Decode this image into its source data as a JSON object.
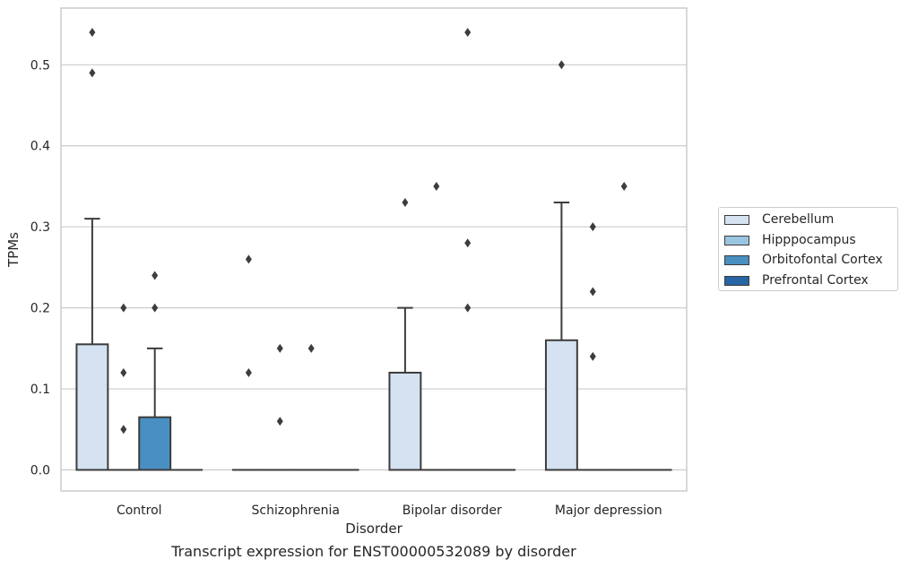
{
  "chart_data": {
    "type": "box",
    "title": "Transcript expression for ENST00000532089 by disorder",
    "xlabel": "Disorder",
    "ylabel": "TPMs",
    "ylim": [
      -0.026,
      0.57
    ],
    "yticks": [
      "0.0",
      "0.1",
      "0.2",
      "0.3",
      "0.4",
      "0.5"
    ],
    "grid": "horizontal",
    "legend_placement": "outside-right",
    "categories": [
      "Control",
      "Schizophrenia",
      "Bipolar disorder",
      "Major depression"
    ],
    "series": [
      {
        "name": "Cerebellum",
        "color": "#d4e2f1",
        "boxes": [
          {
            "q1": 0,
            "median": 0,
            "q3": 0.155,
            "whisker_low": 0,
            "whisker_high": 0.31,
            "outliers": [
              0.49,
              0.54
            ]
          },
          {
            "q1": 0,
            "median": 0,
            "q3": 0,
            "whisker_low": 0,
            "whisker_high": 0,
            "outliers": [
              0.26,
              0.12
            ]
          },
          {
            "q1": 0,
            "median": 0,
            "q3": 0.12,
            "whisker_low": 0,
            "whisker_high": 0.2,
            "outliers": [
              0.33
            ]
          },
          {
            "q1": 0,
            "median": 0,
            "q3": 0.16,
            "whisker_low": 0,
            "whisker_high": 0.33,
            "outliers": [
              0.5
            ]
          }
        ]
      },
      {
        "name": "Hipppocampus",
        "color": "#9ac5e0",
        "boxes": [
          {
            "q1": 0,
            "median": 0,
            "q3": 0,
            "whisker_low": 0,
            "whisker_high": 0,
            "outliers": [
              0.2,
              0.12,
              0.05
            ]
          },
          {
            "q1": 0,
            "median": 0,
            "q3": 0,
            "whisker_low": 0,
            "whisker_high": 0,
            "outliers": [
              0.15,
              0.06
            ]
          },
          {
            "q1": 0,
            "median": 0,
            "q3": 0,
            "whisker_low": 0,
            "whisker_high": 0,
            "outliers": [
              0.35
            ]
          },
          {
            "q1": 0,
            "median": 0,
            "q3": 0,
            "whisker_low": 0,
            "whisker_high": 0,
            "outliers": [
              0.3,
              0.22,
              0.14
            ]
          }
        ]
      },
      {
        "name": "Orbitofontal Cortex",
        "color": "#4a8fc1",
        "boxes": [
          {
            "q1": 0,
            "median": 0,
            "q3": 0.065,
            "whisker_low": 0,
            "whisker_high": 0.15,
            "outliers": [
              0.24,
              0.2
            ]
          },
          {
            "q1": 0,
            "median": 0,
            "q3": 0,
            "whisker_low": 0,
            "whisker_high": 0,
            "outliers": [
              0.15
            ]
          },
          {
            "q1": 0,
            "median": 0,
            "q3": 0,
            "whisker_low": 0,
            "whisker_high": 0,
            "outliers": [
              0.54,
              0.28,
              0.2
            ]
          },
          {
            "q1": 0,
            "median": 0,
            "q3": 0,
            "whisker_low": 0,
            "whisker_high": 0,
            "outliers": [
              0.35
            ]
          }
        ]
      },
      {
        "name": "Prefrontal Cortex",
        "color": "#2765a6",
        "boxes": [
          {
            "q1": 0,
            "median": 0,
            "q3": 0,
            "whisker_low": 0,
            "whisker_high": 0,
            "outliers": []
          },
          {
            "q1": 0,
            "median": 0,
            "q3": 0,
            "whisker_low": 0,
            "whisker_high": 0,
            "outliers": []
          },
          {
            "q1": 0,
            "median": 0,
            "q3": 0,
            "whisker_low": 0,
            "whisker_high": 0,
            "outliers": []
          },
          {
            "q1": 0,
            "median": 0,
            "q3": 0,
            "whisker_low": 0,
            "whisker_high": 0,
            "outliers": []
          }
        ]
      }
    ]
  }
}
